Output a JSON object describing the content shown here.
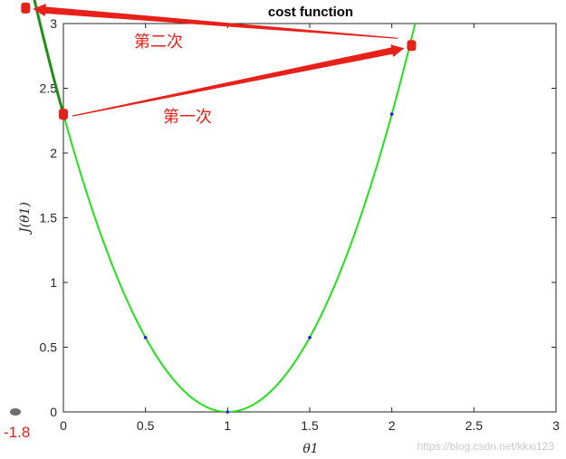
{
  "chart_data": {
    "type": "line",
    "title": "cost function",
    "xlabel": "θ1",
    "ylabel": "J(θ1)",
    "xlim": [
      0,
      3
    ],
    "ylim": [
      0,
      3
    ],
    "xticks": [
      "0",
      "0.5",
      "1",
      "1.5",
      "2",
      "2.5",
      "3"
    ],
    "yticks": [
      "0",
      "0.5",
      "1",
      "1.5",
      "2",
      "2.5",
      "3"
    ],
    "curve": {
      "formula": "2.3*(x-1)^2",
      "color": "#22e01b"
    },
    "points": [
      {
        "x": 0.5,
        "y": 0.575
      },
      {
        "x": 1.0,
        "y": 0.0
      },
      {
        "x": 1.5,
        "y": 0.575
      },
      {
        "x": 2.0,
        "y": 2.3
      }
    ],
    "point_color": "#1a1aff",
    "gradient_steps": [
      {
        "x": 0.0,
        "y": 2.3
      },
      {
        "x": 2.12,
        "y": 2.83
      },
      {
        "x": -0.23,
        "y": 3.12
      }
    ],
    "step_color": "#e8201a",
    "annotations": [
      "第一次",
      "第二次"
    ],
    "left_label": "-1.8",
    "grid": false
  },
  "watermark": "https://blog.csdn.net/kkxi123"
}
